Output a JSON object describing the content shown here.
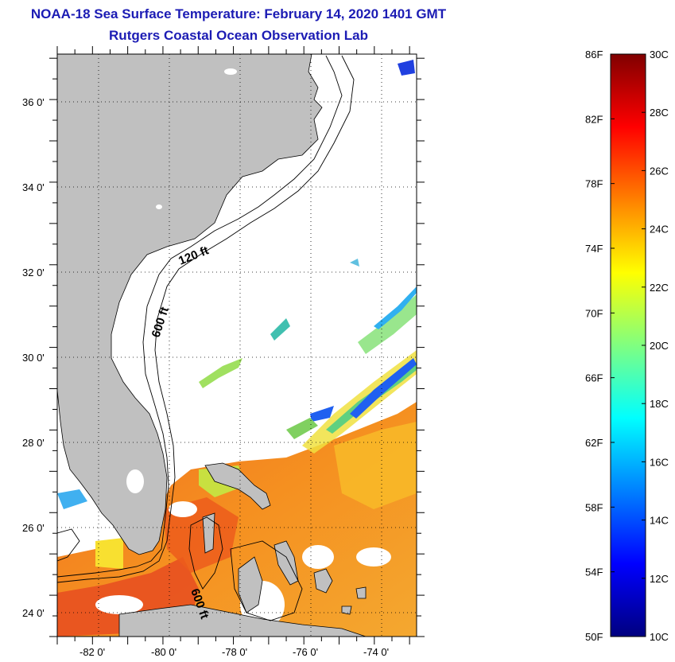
{
  "title": "NOAA-18 Sea Surface Temperature:  February 14, 2020 1401 GMT",
  "subtitle": "Rutgers Coastal Ocean Observation Lab",
  "map": {
    "lat_labels": [
      "36 0'",
      "34 0'",
      "32 0'",
      "30 0'",
      "28 0'",
      "26 0'",
      "24 0'"
    ],
    "lon_labels": [
      "-82 0'",
      "-80 0'",
      "-78 0'",
      "-76 0'",
      "-74 0'"
    ],
    "lat_values": [
      36,
      34,
      32,
      30,
      28,
      26,
      24
    ],
    "lon_values": [
      -82,
      -80,
      -78,
      -76,
      -74
    ],
    "lon_range": [
      -83,
      -72.8
    ],
    "lat_range": [
      23,
      37.1
    ],
    "depth_labels": {
      "shelf": "120 ft",
      "slope": "600 ft",
      "bahamas": "600 ft"
    }
  },
  "colorbar": {
    "fahrenheit_labels": [
      "86F",
      "82F",
      "78F",
      "74F",
      "70F",
      "66F",
      "62F",
      "58F",
      "54F",
      "50F"
    ],
    "celsius_labels": [
      "30C",
      "28C",
      "26C",
      "24C",
      "22C",
      "20C",
      "18C",
      "16C",
      "14C",
      "12C",
      "10C"
    ],
    "range_c": [
      10,
      30
    ],
    "colors": [
      "#00007f",
      "#0000ff",
      "#0080ff",
      "#00ffff",
      "#80ff80",
      "#ffff00",
      "#ff8000",
      "#ff0000",
      "#800000"
    ]
  }
}
